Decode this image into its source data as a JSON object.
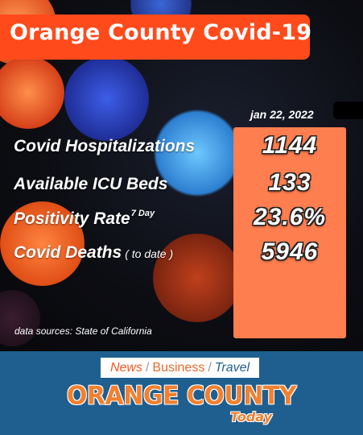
{
  "header": {
    "title": "Orange County Covid-19"
  },
  "stats": {
    "date": "jan 22, 2022",
    "rows": [
      {
        "label": "Covid Hospitalizations",
        "value": "1144"
      },
      {
        "label": "Available ICU Beds",
        "value": "133"
      },
      {
        "label": "Positivity Rate",
        "superscript": "7 Day",
        "value": "23.6%"
      },
      {
        "label": "Covid Deaths",
        "note": "( to date )",
        "value": "5946"
      }
    ],
    "source": "data sources: State of California"
  },
  "footer": {
    "tagline": {
      "news": "News",
      "business": "Business",
      "travel": "Travel",
      "separator": "/"
    },
    "logo_main": "ORANGE COUNTY",
    "logo_sub": "Today"
  },
  "colors": {
    "title_bg": "#ff4a1c",
    "panel_bg": "#ff7e4f",
    "footer_bg": "#1f5f8f",
    "logo_orange": "#f2802e"
  }
}
